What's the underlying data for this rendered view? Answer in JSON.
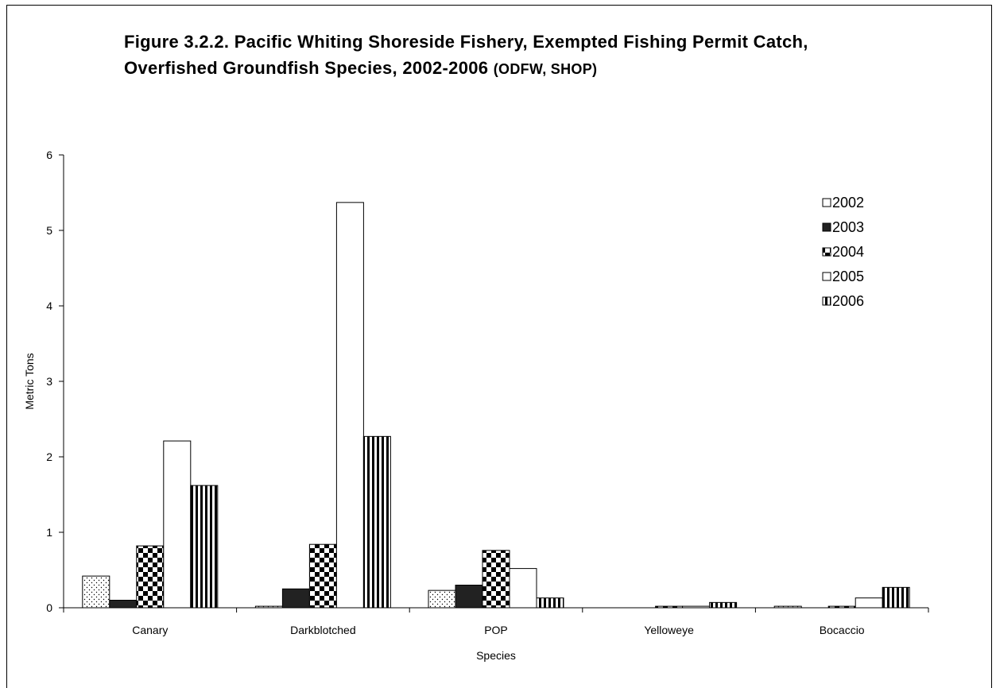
{
  "title": {
    "main": "Figure 3.2.2.  Pacific Whiting Shoreside Fishery, Exempted Fishing Permit Catch, Overfished Groundfish Species, 2002-2006",
    "suffix": "(ODFW, SHOP)"
  },
  "chart_data": {
    "type": "bar",
    "title": "Figure 3.2.2.  Pacific Whiting Shoreside Fishery, Exempted Fishing Permit Catch, Overfished Groundfish Species, 2002-2006 (ODFW, SHOP)",
    "xlabel": "Species",
    "ylabel": "Metric Tons",
    "ylim": [
      0,
      6
    ],
    "yticks": [
      "0",
      "1",
      "2",
      "3",
      "4",
      "5",
      "6"
    ],
    "categories": [
      "Canary",
      "Darkblotched",
      "POP",
      "Yelloweye",
      "Bocaccio"
    ],
    "series": [
      {
        "name": "2002",
        "pattern": "dots",
        "values": [
          0.42,
          0.02,
          0.23,
          0.0,
          0.02
        ]
      },
      {
        "name": "2003",
        "pattern": "solid",
        "values": [
          0.1,
          0.25,
          0.3,
          0.0,
          0.0
        ]
      },
      {
        "name": "2004",
        "pattern": "checker",
        "values": [
          0.82,
          0.84,
          0.76,
          0.02,
          0.02
        ]
      },
      {
        "name": "2005",
        "pattern": "white",
        "values": [
          2.21,
          5.37,
          0.52,
          0.02,
          0.13
        ]
      },
      {
        "name": "2006",
        "pattern": "vstripes",
        "values": [
          1.62,
          2.27,
          0.13,
          0.07,
          0.27
        ]
      }
    ],
    "legend_position": "top-right",
    "grid": false
  }
}
